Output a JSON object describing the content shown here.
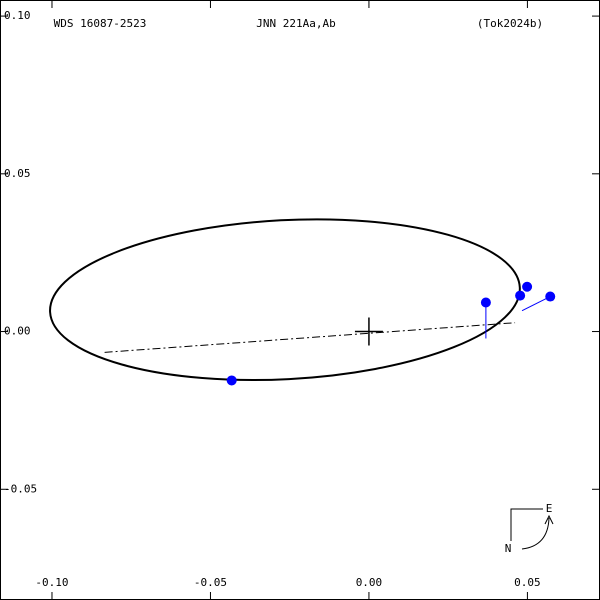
{
  "chart_data": {
    "type": "orbit",
    "label_left": "WDS 16087-2523",
    "label_center": "JNN 221Aa,Ab",
    "label_right": "(Tok2024b)",
    "xlim": [
      -0.1164,
      0.0729
    ],
    "ylim": [
      -0.0851,
      0.1051
    ],
    "xticks": [
      {
        "value": -0.1,
        "label": "-0.10"
      },
      {
        "value": -0.05,
        "label": "-0.05"
      },
      {
        "value": 0,
        "label": "0.00"
      },
      {
        "value": 0.05,
        "label": "0.05"
      }
    ],
    "yticks": [
      {
        "value": 0.1,
        "label": "0.10"
      },
      {
        "value": 0.05,
        "label": "0.05"
      },
      {
        "value": 0,
        "label": "0.00"
      },
      {
        "value": -0.05,
        "label": "-0.05"
      }
    ],
    "orbit": {
      "center_x": -0.0265,
      "center_y": 0.0101,
      "semi_major": 0.0742,
      "semi_minor": 0.0252,
      "angle": 3,
      "color": "#000000"
    },
    "line_of_nodes": {
      "x": [
        -0.0834,
        0.0461
      ],
      "y": [
        -0.0066,
        0.0028
      ]
    },
    "observations": {
      "color": "#0000ff",
      "x": [
        -0.0433,
        0.0369,
        0.0477,
        0.0499,
        0.0572
      ],
      "y": [
        -0.0155,
        0.0092,
        0.0114,
        0.0142,
        0.0111
      ],
      "x_fit": [
        null,
        0.0369,
        null,
        null,
        0.0483
      ],
      "y_fit": [
        null,
        -0.0022,
        null,
        null,
        0.0066
      ]
    },
    "compass_east": "E",
    "compass_north": "N"
  }
}
